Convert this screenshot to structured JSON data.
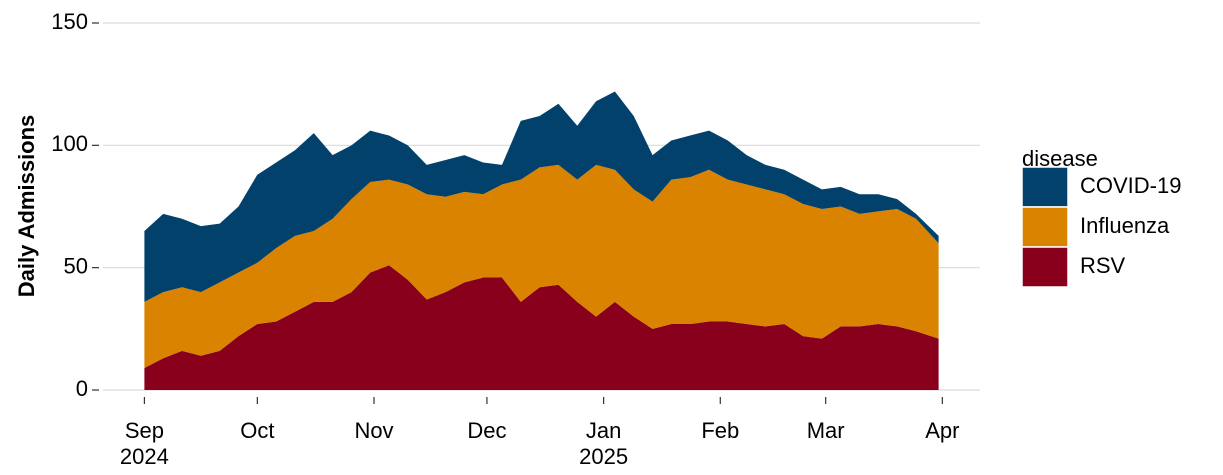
{
  "chart_data": {
    "type": "stacked_area",
    "ylabel": "Daily Admissions",
    "legend_title": "disease",
    "legend": "right",
    "grid": true,
    "x": [
      "2024-09-01",
      "2024-09-06",
      "2024-09-11",
      "2024-09-16",
      "2024-09-21",
      "2024-09-26",
      "2024-10-01",
      "2024-10-06",
      "2024-10-11",
      "2024-10-16",
      "2024-10-21",
      "2024-10-26",
      "2024-10-31",
      "2024-11-05",
      "2024-11-10",
      "2024-11-15",
      "2024-11-20",
      "2024-11-25",
      "2024-11-30",
      "2024-12-05",
      "2024-12-10",
      "2024-12-15",
      "2024-12-20",
      "2024-12-25",
      "2024-12-30",
      "2025-01-04",
      "2025-01-09",
      "2025-01-14",
      "2025-01-19",
      "2025-01-24",
      "2025-01-29",
      "2025-02-03",
      "2025-02-08",
      "2025-02-13",
      "2025-02-18",
      "2025-02-23",
      "2025-02-28",
      "2025-03-05",
      "2025-03-10",
      "2025-03-15",
      "2025-03-20",
      "2025-03-25",
      "2025-03-31"
    ],
    "series": [
      {
        "name": "COVID-19",
        "color": "#01416b",
        "values": [
          29,
          32,
          28,
          27,
          24,
          27,
          36,
          35,
          35,
          40,
          26,
          22,
          21,
          18,
          16,
          12,
          15,
          15,
          13,
          8,
          24,
          21,
          25,
          22,
          26,
          32,
          30,
          19,
          16,
          17,
          16,
          16,
          12,
          10,
          10,
          10,
          8,
          8,
          8,
          7,
          4,
          2,
          3
        ]
      },
      {
        "name": "Influenza",
        "color": "#d98300",
        "values": [
          27,
          27,
          26,
          26,
          28,
          26,
          25,
          30,
          31,
          29,
          34,
          38,
          37,
          35,
          39,
          43,
          39,
          37,
          34,
          38,
          50,
          49,
          49,
          50,
          62,
          54,
          52,
          52,
          59,
          60,
          62,
          58,
          57,
          56,
          53,
          54,
          53,
          49,
          46,
          46,
          48,
          46,
          39
        ]
      },
      {
        "name": "RSV",
        "color": "#89001d",
        "values": [
          9,
          13,
          16,
          14,
          16,
          22,
          27,
          28,
          32,
          36,
          36,
          40,
          48,
          51,
          45,
          37,
          40,
          44,
          46,
          46,
          36,
          42,
          43,
          36,
          30,
          36,
          30,
          25,
          27,
          27,
          28,
          28,
          27,
          26,
          27,
          22,
          21,
          26,
          26,
          27,
          26,
          24,
          21
        ]
      }
    ],
    "xlim": [
      "2024-08-21",
      "2025-04-11"
    ],
    "xticks": [
      {
        "value": "2024-09-01",
        "label": "Sep 2024"
      },
      {
        "value": "2024-10-01",
        "label": "Oct"
      },
      {
        "value": "2024-11-01",
        "label": "Nov"
      },
      {
        "value": "2024-12-01",
        "label": "Dec"
      },
      {
        "value": "2025-01-01",
        "label": "Jan 2025"
      },
      {
        "value": "2025-02-01",
        "label": "Feb"
      },
      {
        "value": "2025-03-01",
        "label": "Mar"
      },
      {
        "value": "2025-04-01",
        "label": "Apr"
      }
    ],
    "ylim": [
      0,
      150
    ],
    "yticks": [
      0,
      50,
      100,
      150
    ]
  }
}
